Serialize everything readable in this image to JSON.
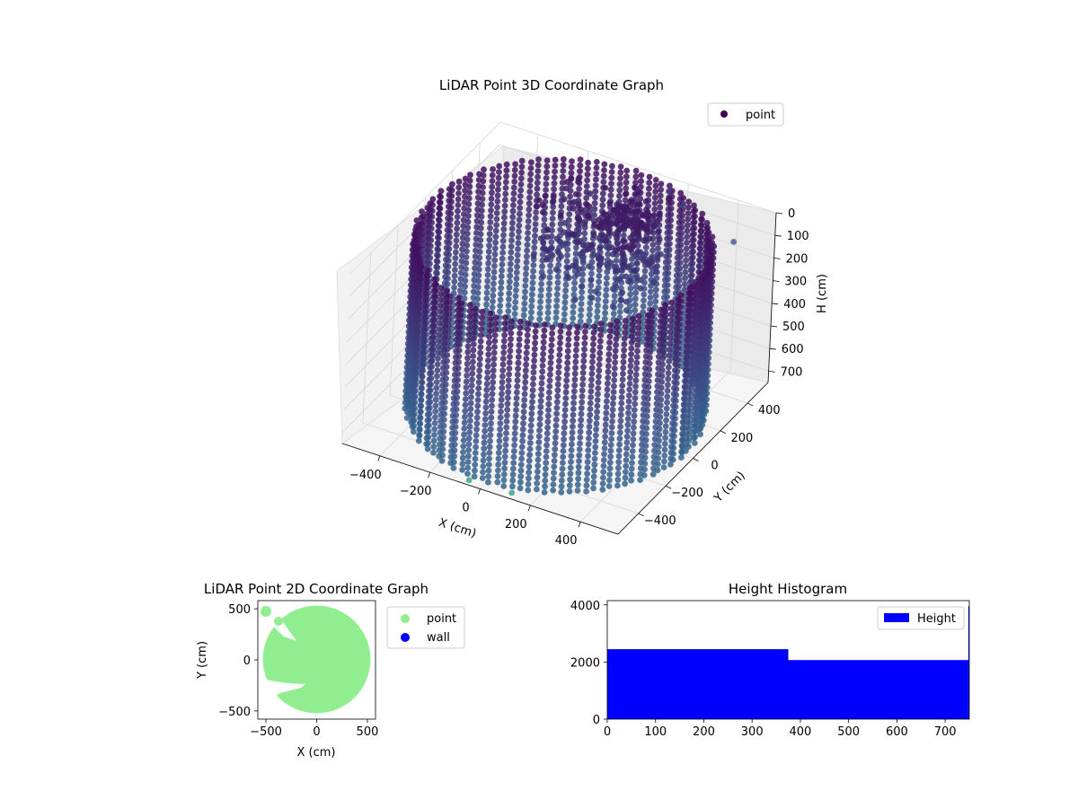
{
  "chart_data": [
    {
      "type": "scatter",
      "projection": "3d",
      "title": "LiDAR Point 3D Coordinate Graph",
      "xlabel": "X (cm)",
      "ylabel": "Y (cm)",
      "zlabel": "H (cm)",
      "x_ticks": [
        -400,
        -200,
        0,
        200,
        400
      ],
      "y_ticks": [
        -400,
        -200,
        0,
        200,
        400
      ],
      "z_ticks": [
        0,
        100,
        200,
        300,
        400,
        500,
        600,
        700
      ],
      "xlim": [
        -550,
        550
      ],
      "ylim": [
        -550,
        550
      ],
      "zlim": [
        750,
        0
      ],
      "z_inverted": true,
      "legend": {
        "entries": [
          "point"
        ],
        "placement": "top-right"
      },
      "colormap": "viridis",
      "marker_color": "#440154",
      "series": [
        {
          "name": "point",
          "description_shape": "cylindrical wall of points around the origin, radius ~520 cm, heights 0-750 cm, plus scattered interior points",
          "ring_radius": 520,
          "height_range": [
            0,
            750
          ],
          "outliers": [
            {
              "x": 150,
              "y": 500,
              "h": 20
            },
            {
              "x": 230,
              "y": 460,
              "h": 30
            },
            {
              "x": 470,
              "y": 390,
              "h": 60
            },
            {
              "x": -40,
              "y": -560,
              "h": 720
            },
            {
              "x": 120,
              "y": -540,
              "h": 730
            }
          ]
        }
      ]
    },
    {
      "type": "scatter",
      "title": "LiDAR Point 2D Coordinate Graph",
      "xlabel": "X (cm)",
      "ylabel": "Y (cm)",
      "x_ticks": [
        -500,
        0,
        500
      ],
      "y_ticks": [
        -500,
        0,
        500
      ],
      "xlim": [
        -580,
        580
      ],
      "ylim": [
        -580,
        580
      ],
      "legend": {
        "entries": [
          "point",
          "wall"
        ],
        "placement": "outside-right"
      },
      "series": [
        {
          "name": "point",
          "color": "#90ee90",
          "fill_radius": 530
        },
        {
          "name": "wall",
          "color": "#0000ff"
        }
      ]
    },
    {
      "type": "bar",
      "title": "Height Histogram",
      "legend": {
        "entries": [
          "Height"
        ],
        "placement": "top-right"
      },
      "x_ticks": [
        0,
        100,
        200,
        300,
        400,
        500,
        600,
        700
      ],
      "y_ticks": [
        0,
        2000,
        4000
      ],
      "xlim": [
        0,
        750
      ],
      "ylim": [
        0,
        4150
      ],
      "series": [
        {
          "name": "Height",
          "color": "#0000ff",
          "bins": [
            {
              "start": 0,
              "end": 375,
              "count": 2450
            },
            {
              "start": 375,
              "end": 748,
              "count": 2070
            },
            {
              "start": 748,
              "end": 750,
              "count": 3950
            }
          ]
        }
      ]
    }
  ]
}
